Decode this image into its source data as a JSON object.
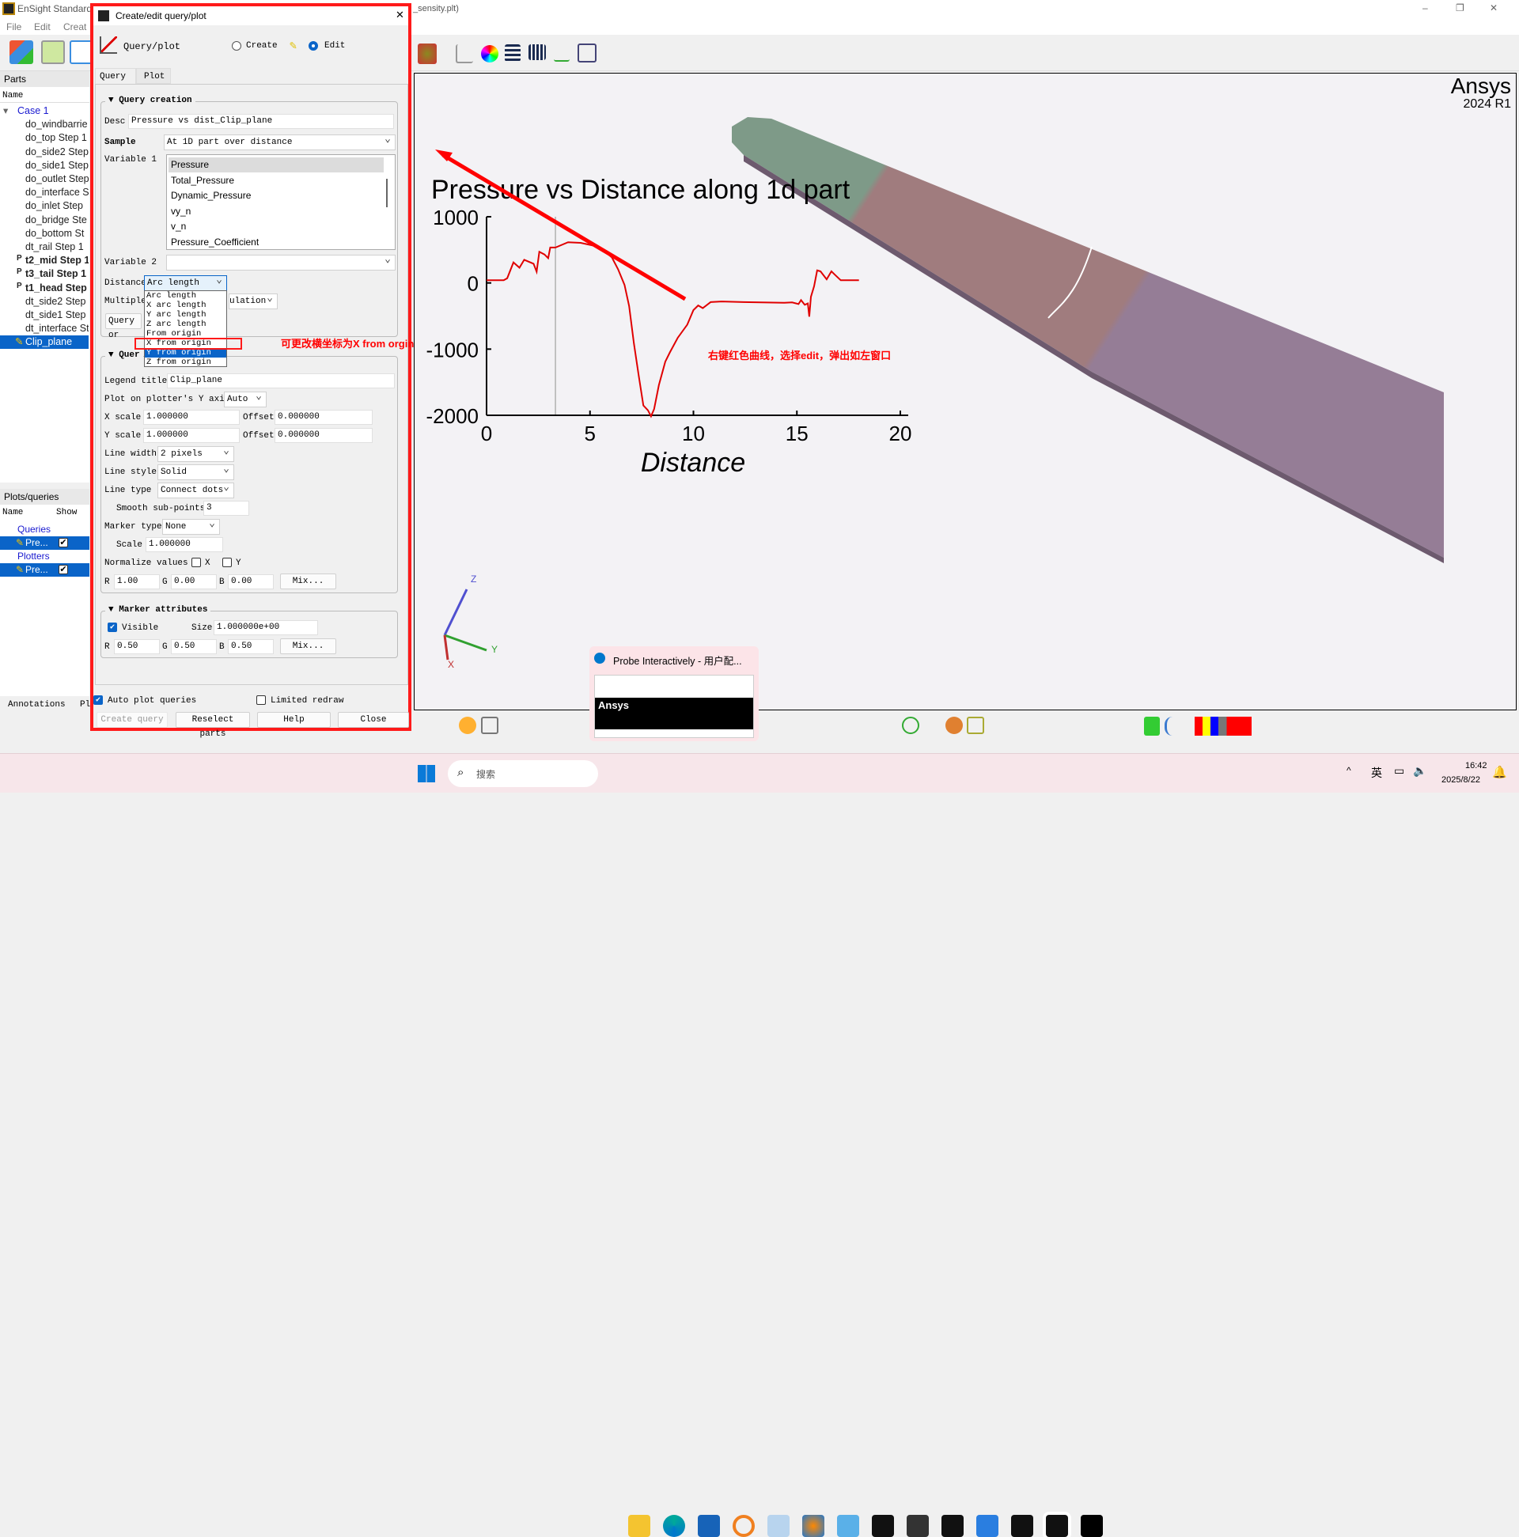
{
  "window": {
    "title_left": "EnSight Standard",
    "title_right": "_sensity.plt)",
    "minimize": "–",
    "restore": "❐",
    "close": "✕"
  },
  "menu": [
    "File",
    "Edit",
    "Creat"
  ],
  "parts": {
    "header": "Parts",
    "col_name": "Name",
    "items": [
      {
        "label": "Case 1",
        "kind": "case"
      },
      {
        "label": "do_windbarrie",
        "kind": "part"
      },
      {
        "label": "do_top Step 1",
        "kind": "part"
      },
      {
        "label": "do_side2 Step",
        "kind": "part"
      },
      {
        "label": "do_side1 Step",
        "kind": "part"
      },
      {
        "label": "do_outlet Step",
        "kind": "part"
      },
      {
        "label": "do_interface S",
        "kind": "part"
      },
      {
        "label": "do_inlet Step",
        "kind": "part"
      },
      {
        "label": "do_bridge Ste",
        "kind": "part"
      },
      {
        "label": "do_bottom St",
        "kind": "part"
      },
      {
        "label": "dt_rail Step 1",
        "kind": "part"
      },
      {
        "label": "t2_mid Step 1",
        "kind": "bold",
        "prefix": "P"
      },
      {
        "label": "t3_tail Step 1",
        "kind": "bold",
        "prefix": "P"
      },
      {
        "label": "t1_head Step",
        "kind": "bold",
        "prefix": "P"
      },
      {
        "label": "dt_side2 Step",
        "kind": "part"
      },
      {
        "label": "dt_side1 Step",
        "kind": "part"
      },
      {
        "label": "dt_interface St",
        "kind": "part"
      },
      {
        "label": "Clip_plane",
        "kind": "selected"
      }
    ]
  },
  "plots": {
    "header": "Plots/queries",
    "col_name": "Name",
    "col_show": "Show",
    "queries": "Queries",
    "query_item": "Pre...",
    "plotters": "Plotters",
    "plotter_item": "Pre..."
  },
  "bottom_tabs": [
    "Annotations",
    "Pl"
  ],
  "dialog": {
    "title": "Create/edit query/plot",
    "close": "✕",
    "mode_label": "Query/plot",
    "create": "Create",
    "edit": "Edit",
    "mode": "edit",
    "tabs": [
      "Query",
      "Plot"
    ],
    "query_creation": {
      "header": "Query creation",
      "desc_label": "Desc",
      "desc": "Pressure vs dist_Clip_plane",
      "sample_label": "Sample",
      "sample": "At 1D part over distance",
      "var1_label": "Variable 1",
      "var1_options": [
        "Pressure",
        "Total_Pressure",
        "Dynamic_Pressure",
        "vy_n",
        "v_n",
        "Pressure_Coefficient"
      ],
      "var1_selected": "Pressure",
      "var2_label": "Variable 2",
      "var2": "",
      "distance_label": "Distance",
      "distance": "Arc length",
      "distance_options": [
        "Arc length",
        "X arc length",
        "Y arc length",
        "Z arc length",
        "From origin",
        "X from origin",
        "Y from origin",
        "Z from origin"
      ],
      "distance_highlight": "Y from origin",
      "multiple_label": "Multiple",
      "multiple": "ulation",
      "query_btn": "Query or"
    },
    "query_attrs": {
      "header": "Quer",
      "legend_label": "Legend title",
      "legend": "Clip_plane",
      "plot_y_label": "Plot on plotter's Y axis",
      "plot_y": "Auto",
      "xscale_label": "X scale",
      "xscale": "1.000000",
      "xoffset_label": "Offset",
      "xoffset": "0.000000",
      "yscale_label": "Y scale",
      "yscale": "1.000000",
      "yoffset_label": "Offset",
      "yoffset": "0.000000",
      "line_width_label": "Line width",
      "line_width": "2 pixels",
      "line_style_label": "Line style",
      "line_style": "Solid",
      "line_type_label": "Line type",
      "line_type": "Connect dots",
      "smooth_label": "Smooth sub-points",
      "smooth": "3",
      "marker_type_label": "Marker type",
      "marker_type": "None",
      "scale_label": "Scale",
      "scale": "1.000000",
      "normalize_label": "Normalize values",
      "norm_x": "X",
      "norm_y": "Y",
      "r": "1.00",
      "g": "0.00",
      "b": "0.00",
      "mix": "Mix..."
    },
    "marker": {
      "header": "Marker attributes",
      "visible": "Visible",
      "size_label": "Size",
      "size": "1.000000e+00",
      "r": "0.50",
      "g": "0.50",
      "b": "0.50",
      "mix": "Mix..."
    },
    "auto_plot": "Auto plot queries",
    "limited_redraw": "Limited redraw",
    "buttons": {
      "create": "Create query",
      "reselect": "Reselect parts",
      "help": "Help",
      "close": "Close"
    }
  },
  "viewport": {
    "brand": "Ansys",
    "version": "2024 R1",
    "axis_x": "X",
    "axis_y": "Y",
    "axis_z": "Z"
  },
  "annotations": {
    "note1": "可更改横坐标为X from orgin",
    "note2": "右键红色曲线，选择edit，弹出如左窗口"
  },
  "chart_data": {
    "type": "line",
    "title": "Pressure vs Distance along 1d part",
    "xlabel": "Distance",
    "ylabel": "",
    "xlim": [
      0,
      20
    ],
    "ylim": [
      -2000,
      1000
    ],
    "xticks": [
      0,
      5,
      10,
      15,
      20
    ],
    "yticks": [
      1000,
      0,
      -1000,
      -2000
    ],
    "color": "#e00000",
    "cursor_x": 3.33,
    "grid": false,
    "x": [
      0,
      0.83,
      1,
      1.3,
      1.59,
      1.82,
      2.27,
      2.42,
      2.55,
      2.8,
      2.98,
      3.08,
      3.33,
      3.94,
      4.55,
      5.45,
      6.06,
      6.36,
      6.67,
      6.89,
      7.12,
      7.35,
      7.58,
      7.8,
      7.95,
      8.1,
      8.33,
      8.64,
      8.86,
      9.24,
      9.7,
      10,
      10.23,
      10.45,
      10.83,
      11.36,
      12.42,
      14.39,
      14.77,
      15.08,
      15.2,
      15.38,
      15.53,
      15.6,
      15.68,
      15.83,
      15.98,
      16.14,
      16.44,
      16.67,
      16.82,
      17.12,
      18
    ],
    "y": [
      40,
      40,
      70,
      310,
      230,
      350,
      290,
      170,
      470,
      430,
      375,
      535,
      535,
      615,
      605,
      545,
      385,
      205,
      -30,
      -350,
      -910,
      -1390,
      -1850,
      -1925,
      -2015,
      -1905,
      -1545,
      -1190,
      -1050,
      -830,
      -630,
      -410,
      -340,
      -380,
      -290,
      -280,
      -290,
      -300,
      -295,
      -320,
      -260,
      -330,
      -310,
      -510,
      -210,
      -50,
      190,
      175,
      55,
      175,
      130,
      40,
      40
    ]
  },
  "thumbnail": {
    "title": "Probe Interactively - 用户配...",
    "brand": "Ansys"
  },
  "taskbar": {
    "search": "搜索",
    "ime": "英",
    "time": "16:42",
    "date": "2025/8/22"
  },
  "colors": {
    "accent": "#0a64c8",
    "annotation": "#ff0000",
    "curve": "#e00000"
  }
}
